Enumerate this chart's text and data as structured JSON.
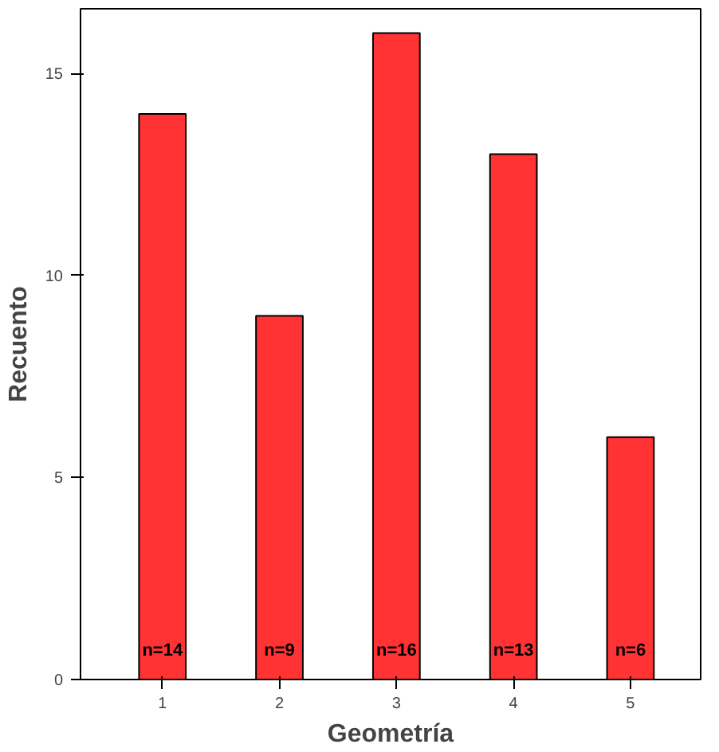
{
  "chart_data": {
    "type": "bar",
    "xlabel": "Geometría",
    "ylabel": "Recuento",
    "categories": [
      "1",
      "2",
      "3",
      "4",
      "5"
    ],
    "values": [
      14,
      9,
      16,
      13,
      6
    ],
    "color": "#ff3333",
    "value_labels": [
      "n=14",
      "n=9",
      "n=16",
      "n=13",
      "n=6"
    ],
    "ylim": [
      0,
      16.6
    ],
    "yticks": [
      0,
      5,
      10,
      15
    ],
    "grid": false
  }
}
